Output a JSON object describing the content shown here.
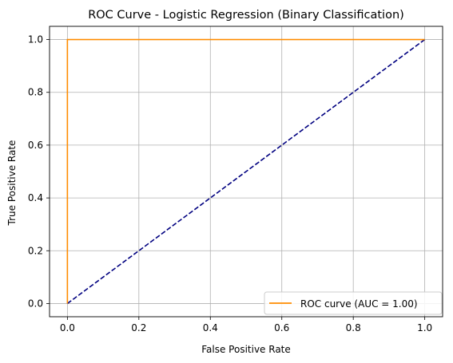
{
  "chart_data": {
    "type": "line",
    "title": "ROC Curve - Logistic Regression (Binary Classification)",
    "xlabel": "False Positive Rate",
    "ylabel": "True Positive Rate",
    "xlim": [
      -0.05,
      1.05
    ],
    "ylim": [
      -0.05,
      1.05
    ],
    "xticks": [
      0.0,
      0.2,
      0.4,
      0.6,
      0.8,
      1.0
    ],
    "xtick_labels": [
      "0.0",
      "0.2",
      "0.4",
      "0.6",
      "0.8",
      "1.0"
    ],
    "yticks": [
      0.0,
      0.2,
      0.4,
      0.6,
      0.8,
      1.0
    ],
    "ytick_labels": [
      "0.0",
      "0.2",
      "0.4",
      "0.6",
      "0.8",
      "1.0"
    ],
    "grid": true,
    "legend_position": "lower-right",
    "series": [
      {
        "name": "ROC curve (AUC = 1.00)",
        "color": "#ff8c00",
        "style": "solid",
        "x": [
          0.0,
          0.0,
          1.0
        ],
        "y": [
          0.0,
          1.0,
          1.0
        ],
        "in_legend": true
      },
      {
        "color": "#000080",
        "style": "dashed",
        "x": [
          0.0,
          1.0
        ],
        "y": [
          0.0,
          1.0
        ],
        "in_legend": false
      }
    ]
  }
}
